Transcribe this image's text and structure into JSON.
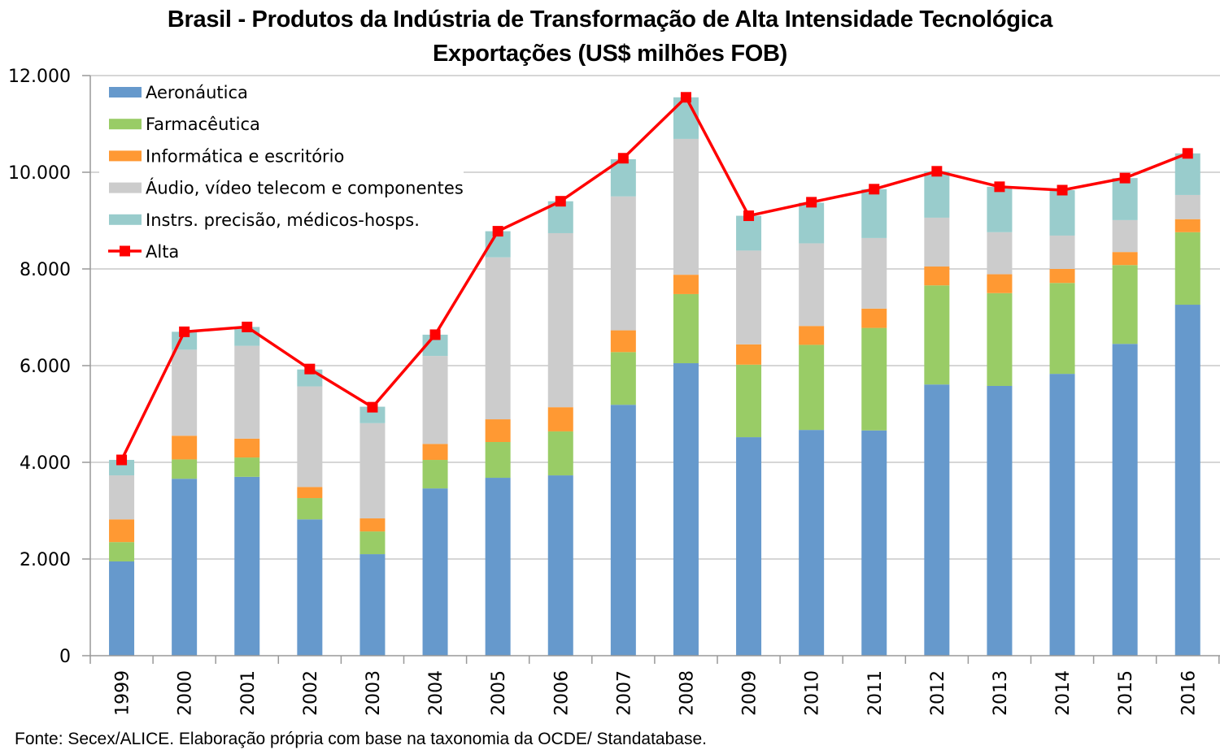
{
  "chart_data": {
    "type": "bar",
    "stacked": true,
    "title": "Brasil - Produtos da Indústria de Transformação de Alta Intensidade Tecnológica",
    "subtitle": "Exportações (US$ milhões FOB)",
    "xlabel": "",
    "ylabel": "",
    "ylim": [
      0,
      12000
    ],
    "yticks": [
      0,
      2000,
      4000,
      6000,
      8000,
      10000,
      12000
    ],
    "ytick_labels": [
      "0",
      "2.000",
      "4.000",
      "6.000",
      "8.000",
      "10.000",
      "12.000"
    ],
    "grid": true,
    "legend_position": "top-left",
    "categories": [
      "1999",
      "2000",
      "2001",
      "2002",
      "2003",
      "2004",
      "2005",
      "2006",
      "2007",
      "2008",
      "2009",
      "2010",
      "2011",
      "2012",
      "2013",
      "2014",
      "2015",
      "2016"
    ],
    "series": [
      {
        "name": "Aeronáutica",
        "color": "#6699cc",
        "kind": "bar",
        "values": [
          1950,
          3660,
          3700,
          2820,
          2100,
          3460,
          3680,
          3730,
          5190,
          6050,
          4520,
          4670,
          4660,
          5610,
          5580,
          5830,
          6450,
          7260
        ]
      },
      {
        "name": "Farmacêutica",
        "color": "#99cc66",
        "kind": "bar",
        "values": [
          400,
          400,
          400,
          440,
          470,
          590,
          740,
          910,
          1090,
          1430,
          1500,
          1760,
          2120,
          2050,
          1920,
          1880,
          1630,
          1500
        ]
      },
      {
        "name": "Informática e escritório",
        "color": "#ff9933",
        "kind": "bar",
        "values": [
          470,
          490,
          390,
          230,
          270,
          330,
          470,
          500,
          450,
          400,
          420,
          390,
          400,
          390,
          390,
          290,
          270,
          270
        ]
      },
      {
        "name": "Áudio, vídeo telecom e componentes",
        "color": "#cccccc",
        "kind": "bar",
        "values": [
          910,
          1780,
          1920,
          2080,
          1970,
          1820,
          3350,
          3600,
          2770,
          2810,
          1940,
          1710,
          1460,
          1010,
          870,
          690,
          660,
          500
        ]
      },
      {
        "name": "Instrs. precisão, médicos-hosps.",
        "color": "#99cccc",
        "kind": "bar",
        "values": [
          320,
          370,
          390,
          350,
          340,
          440,
          540,
          660,
          770,
          860,
          720,
          840,
          1010,
          960,
          940,
          940,
          870,
          860
        ]
      },
      {
        "name": "Alta",
        "color": "#ff0000",
        "kind": "line",
        "marker": "square",
        "values": [
          4050,
          6700,
          6800,
          5930,
          5140,
          6640,
          8780,
          9400,
          10290,
          11550,
          9100,
          9380,
          9650,
          10020,
          9700,
          9630,
          9880,
          10390
        ]
      }
    ]
  },
  "source_note": "Fonte: Secex/ALICE. Elaboração própria com base na taxonomia da OCDE/ Standatabase."
}
